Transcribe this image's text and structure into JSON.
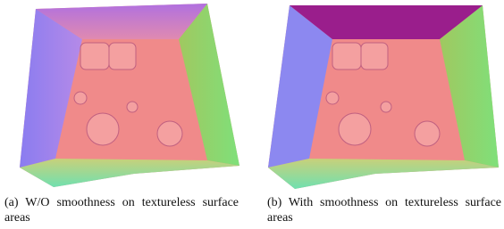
{
  "figures": [
    {
      "caption": "(a) W/O smoothness on textureless surface areas"
    },
    {
      "caption": "(b) With smoothness on textureless surface areas"
    }
  ]
}
